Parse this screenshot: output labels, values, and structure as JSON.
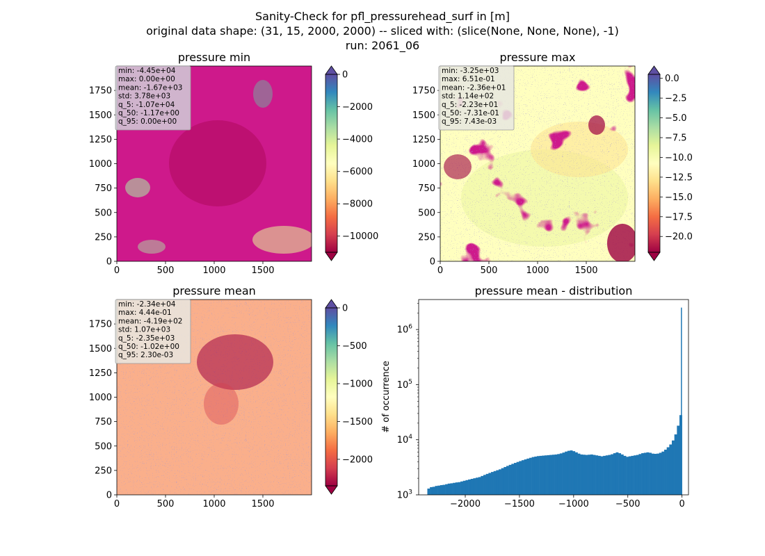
{
  "figure": {
    "title_lines": [
      "Sanity-Check for pfl_pressurehead_surf in [m]",
      "original data shape: (31, 15, 2000, 2000) -- sliced with: (slice(None, None, None), -1)",
      "run: 2061_06"
    ]
  },
  "colors": {
    "spectral": [
      "#9e0142",
      "#d53e4f",
      "#f46d43",
      "#fdae61",
      "#fee08b",
      "#ffffbf",
      "#e6f598",
      "#abdda4",
      "#66c2a5",
      "#3288bd",
      "#5e4fa2"
    ],
    "hist_bar": "#1f77b4",
    "stats_box_bg": "#d0d0d8"
  },
  "chart_data": [
    {
      "type": "heatmap",
      "title": "pressure min",
      "x_ticks": [
        "0",
        "500",
        "1000",
        "1500"
      ],
      "y_ticks": [
        "0",
        "250",
        "500",
        "750",
        "1000",
        "1250",
        "1500",
        "1750"
      ],
      "xlim": [
        0,
        2000
      ],
      "ylim": [
        0,
        2000
      ],
      "colorbar": {
        "vmin": -11000,
        "vmax": 0,
        "ticks": [
          0,
          -2000,
          -4000,
          -6000,
          -8000,
          -10000
        ],
        "tick_labels": [
          "0",
          "−2000",
          "−4000",
          "−6000",
          "−8000",
          "−10000"
        ],
        "extend": "both",
        "cmap": "Spectral"
      },
      "stats": [
        "min: -4.45e+04",
        "max: 0.00e+00",
        "mean: -1.67e+03",
        "std: 3.78e+03",
        "q_5: -1.07e+04",
        "q_50: -1.17e+00",
        "q_95: 0.00e+00"
      ]
    },
    {
      "type": "heatmap",
      "title": "pressure max",
      "x_ticks": [
        "0",
        "500",
        "1000",
        "1500"
      ],
      "y_ticks": [
        "0",
        "250",
        "500",
        "750",
        "1000",
        "1250",
        "1500",
        "1750"
      ],
      "xlim": [
        0,
        2000
      ],
      "ylim": [
        0,
        2000
      ],
      "colorbar": {
        "vmin": -22,
        "vmax": 0.5,
        "ticks": [
          0,
          -2.5,
          -5,
          -7.5,
          -10,
          -12.5,
          -15,
          -17.5,
          -20
        ],
        "tick_labels": [
          "0.0",
          "−2.5",
          "−5.0",
          "−7.5",
          "−10.0",
          "−12.5",
          "−15.0",
          "−17.5",
          "−20.0"
        ],
        "extend": "both",
        "cmap": "Spectral"
      },
      "stats": [
        "min: -3.25e+03",
        "max: 6.51e-01",
        "mean: -2.36e+01",
        "std: 1.14e+02",
        "q_5: -2.23e+01",
        "q_50: -7.31e-01",
        "q_95: 7.43e-03"
      ]
    },
    {
      "type": "heatmap",
      "title": "pressure mean",
      "x_ticks": [
        "0",
        "500",
        "1000",
        "1500"
      ],
      "y_ticks": [
        "0",
        "250",
        "500",
        "750",
        "1000",
        "1250",
        "1500",
        "1750"
      ],
      "xlim": [
        0,
        2000
      ],
      "ylim": [
        0,
        2000
      ],
      "colorbar": {
        "vmin": -2350,
        "vmax": 0,
        "ticks": [
          0,
          -500,
          -1000,
          -1500,
          -2000
        ],
        "tick_labels": [
          "0",
          "−500",
          "−1000",
          "−1500",
          "−2000"
        ],
        "extend": "both",
        "cmap": "Spectral"
      },
      "stats": [
        "min: -2.34e+04",
        "max: 4.44e-01",
        "mean: -4.19e+02",
        "std: 1.07e+03",
        "q_5: -2.35e+03",
        "q_50: -1.02e+00",
        "q_95: 2.30e-03"
      ]
    },
    {
      "type": "bar",
      "title": "pressure mean - distribution",
      "ylabel": "# of occurrence",
      "y_scale": "log",
      "xlim": [
        -2430,
        60
      ],
      "ylim": [
        1000,
        3500000
      ],
      "x_ticks": [
        -2000,
        -1500,
        -1000,
        -500,
        0
      ],
      "x_tick_labels": [
        "−2000",
        "−1500",
        "−1000",
        "−500",
        "0"
      ],
      "y_ticks": [
        1000,
        10000,
        100000,
        1000000
      ],
      "y_tick_labels": [
        [
          "10",
          "3"
        ],
        [
          "10",
          "4"
        ],
        [
          "10",
          "5"
        ],
        [
          "10",
          "6"
        ]
      ],
      "bin_range": [
        -2350,
        0
      ],
      "bin_count": 100,
      "counts": [
        1300,
        1380,
        1400,
        1450,
        1470,
        1500,
        1520,
        1560,
        1600,
        1620,
        1650,
        1680,
        1700,
        1750,
        1800,
        1850,
        1900,
        1950,
        2000,
        2050,
        2100,
        2200,
        2300,
        2400,
        2500,
        2600,
        2700,
        2800,
        2900,
        3050,
        3200,
        3350,
        3500,
        3650,
        3800,
        3950,
        4100,
        4250,
        4400,
        4550,
        4700,
        4850,
        4950,
        5050,
        5100,
        5150,
        5200,
        5250,
        5300,
        5350,
        5400,
        5500,
        5650,
        5850,
        6100,
        6300,
        6400,
        6200,
        5900,
        5600,
        5400,
        5350,
        5300,
        5350,
        5400,
        5300,
        5200,
        5100,
        5000,
        5100,
        5200,
        5300,
        5450,
        5700,
        5900,
        5700,
        5400,
        5100,
        4900,
        5000,
        5100,
        5200,
        5300,
        5500,
        5700,
        5800,
        5900,
        5800,
        5600,
        5550,
        5600,
        5800,
        6100,
        6600,
        7300,
        8200,
        9700,
        12500,
        18000,
        28000
      ],
      "spike": {
        "x": -10,
        "count": 2500000
      }
    }
  ]
}
